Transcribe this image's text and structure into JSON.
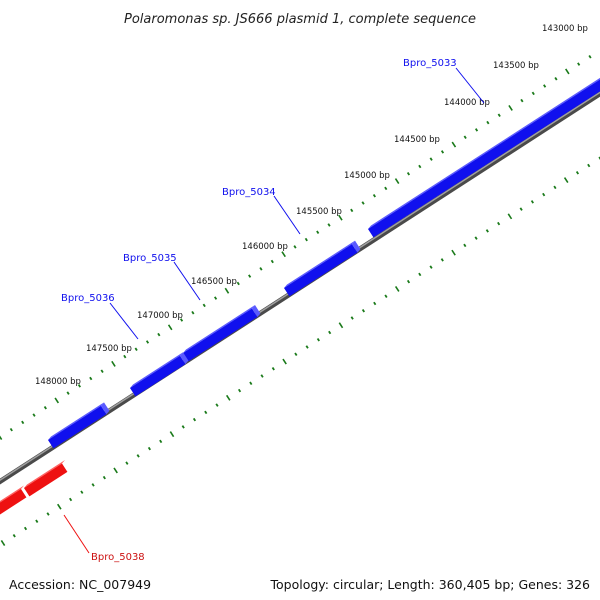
{
  "title": "Polaromonas sp. JS666 plasmid 1, complete sequence",
  "footer": {
    "accession": "Accession: NC_007949",
    "summary": "Topology: circular; Length: 360,405 bp; Genes: 326"
  },
  "colors": {
    "forward_gene": "#1010ee",
    "reverse_gene": "#ee1111",
    "backbone": "#7a7a7a",
    "tick": "#1a7a1a"
  },
  "ticks": [
    "143000 bp",
    "143500 bp",
    "144000 bp",
    "144500 bp",
    "145000 bp",
    "145500 bp",
    "146000 bp",
    "146500 bp",
    "147000 bp",
    "147500 bp",
    "148000 bp"
  ],
  "genes": [
    {
      "label": "Bpro_5033",
      "strand": "forward"
    },
    {
      "label": "Bpro_5034",
      "strand": "forward"
    },
    {
      "label": "Bpro_5035",
      "strand": "forward"
    },
    {
      "label": "Bpro_5036",
      "strand": "forward"
    },
    {
      "label": "Bpro_5038",
      "strand": "reverse"
    }
  ]
}
